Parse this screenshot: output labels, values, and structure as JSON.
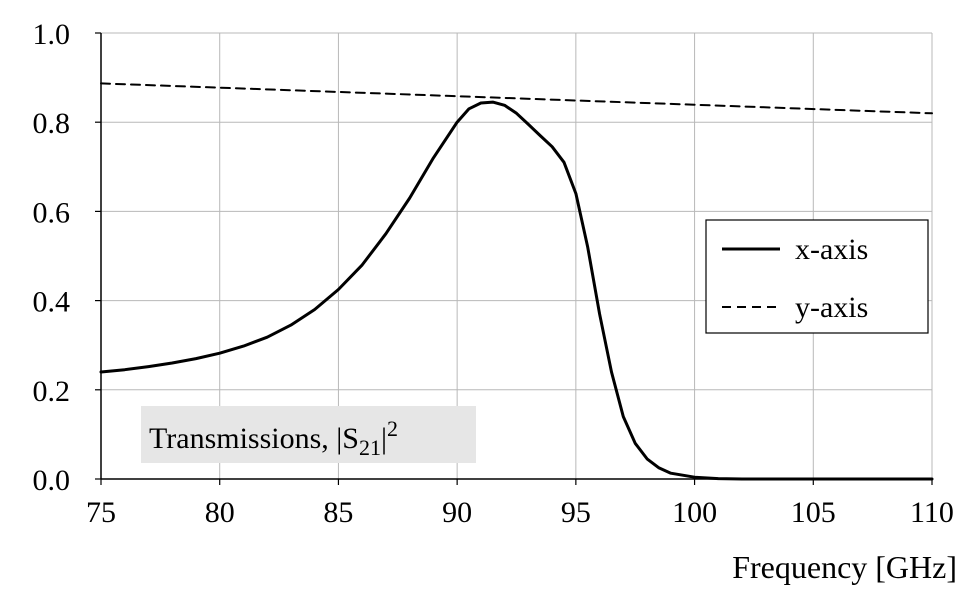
{
  "chart_data": {
    "type": "line",
    "xlabel": "Frequency [GHz]",
    "ylabel": "",
    "xlim": [
      75,
      110
    ],
    "ylim": [
      0.0,
      1.0
    ],
    "xticks": [
      "75",
      "80",
      "85",
      "90",
      "95",
      "100",
      "105",
      "110"
    ],
    "yticks": [
      "0.0",
      "0.2",
      "0.4",
      "0.6",
      "0.8",
      "1.0"
    ],
    "grid": true,
    "legend_position": "right",
    "annotation": {
      "prefix": "Transmissions, |S",
      "subscript": "21",
      "suffix": "|",
      "superscript": "2"
    },
    "series": [
      {
        "name": "x-axis",
        "style": "solid",
        "color": "#000000",
        "x": [
          75,
          76,
          77,
          78,
          79,
          80,
          81,
          82,
          83,
          84,
          85,
          86,
          87,
          88,
          89,
          90,
          90.5,
          91,
          91.5,
          92,
          92.5,
          93,
          93.5,
          94,
          94.5,
          95,
          95.5,
          96,
          96.5,
          97,
          97.5,
          98,
          98.5,
          99,
          100,
          101,
          102,
          105,
          110
        ],
        "y": [
          0.24,
          0.245,
          0.252,
          0.26,
          0.27,
          0.282,
          0.298,
          0.318,
          0.345,
          0.38,
          0.425,
          0.48,
          0.55,
          0.63,
          0.72,
          0.8,
          0.83,
          0.843,
          0.845,
          0.838,
          0.82,
          0.795,
          0.77,
          0.745,
          0.71,
          0.64,
          0.52,
          0.37,
          0.24,
          0.14,
          0.08,
          0.045,
          0.025,
          0.013,
          0.004,
          0.001,
          0.0,
          0.0,
          0.0
        ]
      },
      {
        "name": "y-axis",
        "style": "dashed",
        "color": "#000000",
        "x": [
          75,
          110
        ],
        "y": [
          0.887,
          0.82
        ]
      }
    ]
  }
}
